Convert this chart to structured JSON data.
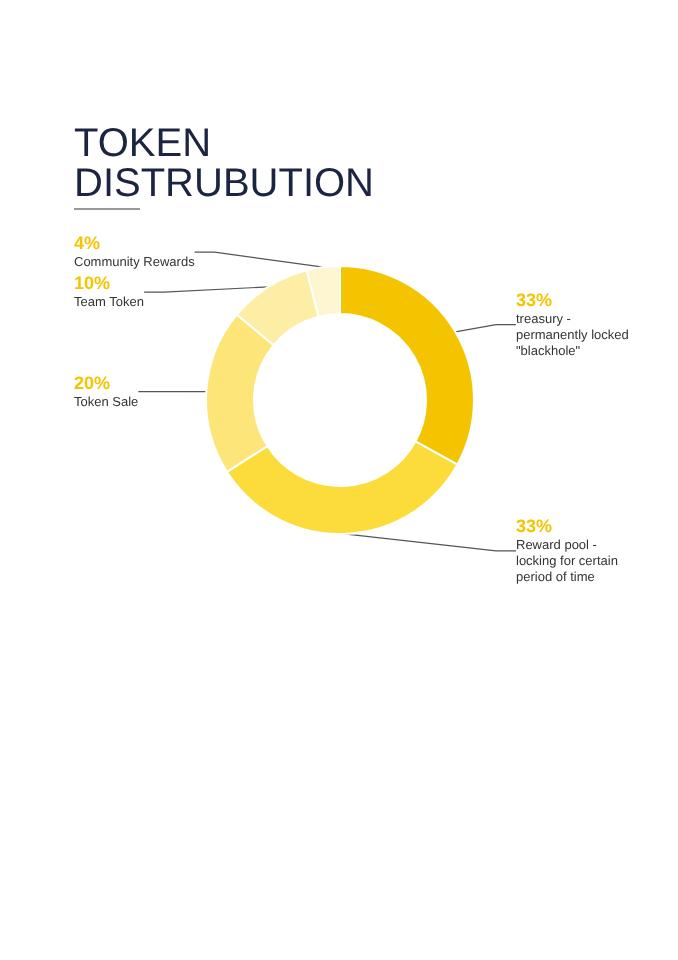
{
  "chart_data": {
    "type": "donut",
    "title": "TOKEN DISTRUBUTION",
    "categories": [
      "treasury - permanently locked \"blackhole\"",
      "Reward pool - locking for certain period of time",
      "Token Sale",
      "Team Token",
      "Community Rewards"
    ],
    "values": [
      33,
      33,
      20,
      10,
      4
    ],
    "colors": [
      "#f5c400",
      "#fcdc3a",
      "#fde57a",
      "#fdeea6",
      "#fef6d0"
    ],
    "value_labels": [
      "33%",
      "33%",
      "20%",
      "10%",
      "4%"
    ],
    "legend": false
  }
}
